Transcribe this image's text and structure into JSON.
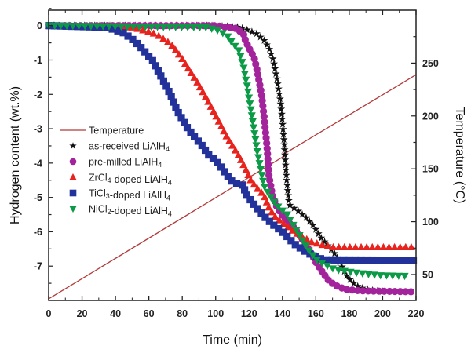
{
  "chart_data": {
    "type": "scatter",
    "xlabel": "Time (min)",
    "ylabel": "Hydrogen content (wt.%)",
    "y2label": "Temperature (°C)",
    "xlim": [
      0,
      220
    ],
    "ylim": [
      -8,
      0.45
    ],
    "y2lim": [
      25.5,
      300
    ],
    "xticks": [
      0,
      20,
      40,
      60,
      80,
      100,
      120,
      140,
      160,
      180,
      200,
      220
    ],
    "yticks": [
      0,
      -1,
      -2,
      -3,
      -4,
      -5,
      -6,
      -7
    ],
    "y2ticks": [
      50,
      100,
      150,
      200,
      250
    ],
    "grid": false,
    "legend_position": "center-left",
    "series": [
      {
        "name": "Temperature",
        "axis": "right",
        "kind": "line",
        "color": "#b23a3a",
        "points": [
          [
            0,
            27
          ],
          [
            140,
            161
          ],
          [
            141,
            165
          ],
          [
            142,
            165
          ],
          [
            220,
            239
          ]
        ]
      },
      {
        "name": "as-received LiAlH4",
        "axis": "left",
        "marker": "star",
        "color": "#111111",
        "points": [
          [
            0,
            0
          ],
          [
            100,
            0
          ],
          [
            115,
            -0.05
          ],
          [
            124.5,
            -0.23
          ],
          [
            129,
            -0.43
          ],
          [
            132,
            -0.66
          ],
          [
            134.5,
            -1.0
          ],
          [
            137,
            -1.64
          ],
          [
            138.5,
            -2.1
          ],
          [
            139.8,
            -2.68
          ],
          [
            141,
            -3.42
          ],
          [
            142.5,
            -4.49
          ],
          [
            144,
            -5.21
          ],
          [
            149.5,
            -5.4
          ],
          [
            154,
            -5.58
          ],
          [
            159,
            -5.85
          ],
          [
            162.7,
            -6.15
          ],
          [
            166.8,
            -6.38
          ],
          [
            171.5,
            -6.65
          ],
          [
            175.4,
            -7.0
          ],
          [
            179,
            -7.33
          ],
          [
            184,
            -7.56
          ],
          [
            187,
            -7.63
          ],
          [
            195,
            -7.72
          ],
          [
            200,
            -7.74
          ]
        ]
      },
      {
        "name": "pre-milled LiAlH4",
        "axis": "left",
        "marker": "circle",
        "color": "#a3239c",
        "points": [
          [
            0,
            0
          ],
          [
            100,
            0
          ],
          [
            112,
            -0.08
          ],
          [
            116.6,
            -0.23
          ],
          [
            118,
            -0.46
          ],
          [
            120.5,
            -0.7
          ],
          [
            123,
            -0.92
          ],
          [
            124.5,
            -1.22
          ],
          [
            127.5,
            -2.0
          ],
          [
            129,
            -2.66
          ],
          [
            130.7,
            -3.5
          ],
          [
            132,
            -4.4
          ],
          [
            134,
            -4.94
          ],
          [
            137,
            -5.32
          ],
          [
            141.5,
            -5.63
          ],
          [
            146,
            -5.82
          ],
          [
            150,
            -6.08
          ],
          [
            154,
            -6.38
          ],
          [
            157.5,
            -6.65
          ],
          [
            160.4,
            -6.92
          ],
          [
            163.6,
            -7.15
          ],
          [
            167.5,
            -7.41
          ],
          [
            171.5,
            -7.56
          ],
          [
            177.8,
            -7.68
          ],
          [
            187,
            -7.72
          ],
          [
            220,
            -7.75
          ]
        ]
      },
      {
        "name": "ZrCl4-doped LiAlH4",
        "axis": "left",
        "marker": "triangle-up",
        "color": "#e8231e",
        "points": [
          [
            0,
            0
          ],
          [
            50,
            -0.05
          ],
          [
            61.7,
            -0.2
          ],
          [
            66,
            -0.3
          ],
          [
            69.6,
            -0.42
          ],
          [
            73.5,
            -0.55
          ],
          [
            77.4,
            -0.8
          ],
          [
            80.5,
            -1.0
          ],
          [
            83.7,
            -1.26
          ],
          [
            88.4,
            -1.6
          ],
          [
            91.6,
            -1.87
          ],
          [
            94.6,
            -2.13
          ],
          [
            99.3,
            -2.55
          ],
          [
            102.5,
            -2.85
          ],
          [
            107,
            -3.27
          ],
          [
            110.5,
            -3.53
          ],
          [
            114,
            -3.8
          ],
          [
            118,
            -4.18
          ],
          [
            121,
            -4.5
          ],
          [
            124.5,
            -4.72
          ],
          [
            129,
            -4.94
          ],
          [
            132,
            -5.32
          ],
          [
            135.4,
            -5.55
          ],
          [
            139,
            -5.7
          ],
          [
            143,
            -5.85
          ],
          [
            147,
            -6.0
          ],
          [
            152,
            -6.15
          ],
          [
            157.5,
            -6.3
          ],
          [
            163.6,
            -6.38
          ],
          [
            170,
            -6.45
          ],
          [
            220,
            -6.45
          ]
        ]
      },
      {
        "name": "TiCl3-doped LiAlH4",
        "axis": "left",
        "marker": "square",
        "color": "#22329a",
        "points": [
          [
            0,
            0
          ],
          [
            35,
            -0.05
          ],
          [
            44.5,
            -0.2
          ],
          [
            50,
            -0.39
          ],
          [
            55,
            -0.62
          ],
          [
            58,
            -0.78
          ],
          [
            62,
            -1.0
          ],
          [
            67,
            -1.45
          ],
          [
            70,
            -1.72
          ],
          [
            73,
            -2.02
          ],
          [
            77,
            -2.48
          ],
          [
            80,
            -2.72
          ],
          [
            83,
            -2.97
          ],
          [
            88,
            -3.28
          ],
          [
            92,
            -3.5
          ],
          [
            96,
            -3.78
          ],
          [
            100,
            -3.93
          ],
          [
            103,
            -4.1
          ],
          [
            107,
            -4.37
          ],
          [
            110,
            -4.55
          ],
          [
            116.6,
            -4.65
          ],
          [
            118,
            -4.9
          ],
          [
            123.6,
            -5.24
          ],
          [
            129,
            -5.55
          ],
          [
            134,
            -5.78
          ],
          [
            140,
            -6.0
          ],
          [
            147,
            -6.35
          ],
          [
            153,
            -6.55
          ],
          [
            159,
            -6.72
          ],
          [
            165,
            -6.82
          ],
          [
            220,
            -6.83
          ]
        ]
      },
      {
        "name": "NiCl2-doped LiAlH4",
        "axis": "left",
        "marker": "triangle-down",
        "color": "#0b9a45",
        "points": [
          [
            0,
            0
          ],
          [
            95,
            -0.05
          ],
          [
            102,
            -0.15
          ],
          [
            107,
            -0.3
          ],
          [
            110.5,
            -0.55
          ],
          [
            113.5,
            -0.66
          ],
          [
            116.6,
            -1.18
          ],
          [
            119,
            -1.8
          ],
          [
            122,
            -2.73
          ],
          [
            125,
            -3.69
          ],
          [
            129,
            -4.67
          ],
          [
            131.5,
            -4.87
          ],
          [
            134.5,
            -5.1
          ],
          [
            138.5,
            -5.33
          ],
          [
            142.5,
            -5.47
          ],
          [
            147,
            -5.85
          ],
          [
            152,
            -6.24
          ],
          [
            155.7,
            -6.54
          ],
          [
            160.4,
            -6.81
          ],
          [
            165,
            -6.95
          ],
          [
            171.5,
            -7.1
          ],
          [
            182,
            -7.18
          ],
          [
            198,
            -7.27
          ],
          [
            215,
            -7.29
          ]
        ]
      }
    ]
  }
}
